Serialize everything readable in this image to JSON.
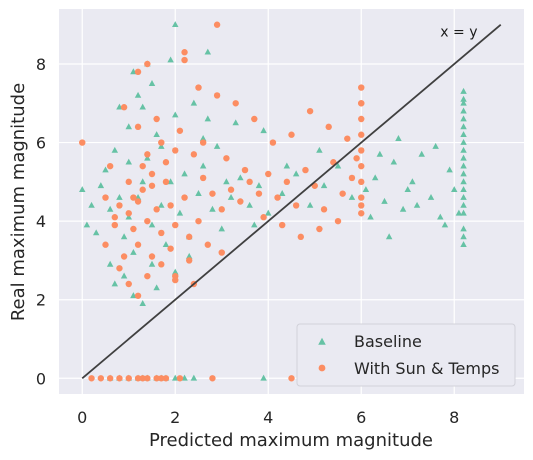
{
  "chart_data": {
    "type": "scatter",
    "title": "",
    "xlabel": "Predicted maximum magnitude",
    "ylabel": "Real maximum magnitude",
    "xlim": [
      -0.5,
      9.5
    ],
    "ylim": [
      -0.4,
      9.4
    ],
    "xticks": [
      0,
      2,
      4,
      6,
      8
    ],
    "yticks": [
      0,
      2,
      4,
      6,
      8
    ],
    "grid": true,
    "legend_position": "lower-right",
    "reference_line": {
      "label": "x = y",
      "from": [
        0,
        0
      ],
      "to": [
        9,
        9
      ],
      "color": "#404040"
    },
    "series": [
      {
        "name": "Baseline",
        "marker": "triangle",
        "color": "#66c2a5",
        "points": [
          [
            1.0,
            4.1
          ],
          [
            1.2,
            4.6
          ],
          [
            1.5,
            3.9
          ],
          [
            1.7,
            4.4
          ],
          [
            1.3,
            5.0
          ],
          [
            0.9,
            3.6
          ],
          [
            1.8,
            3.4
          ],
          [
            2.1,
            4.2
          ],
          [
            1.4,
            5.6
          ],
          [
            1.1,
            3.2
          ],
          [
            0.6,
            4.3
          ],
          [
            0.4,
            4.9
          ],
          [
            0.2,
            4.4
          ],
          [
            0.0,
            4.8
          ],
          [
            0.1,
            3.9
          ],
          [
            0.7,
            5.8
          ],
          [
            1.0,
            6.4
          ],
          [
            1.3,
            6.9
          ],
          [
            1.5,
            7.5
          ],
          [
            1.2,
            7.2
          ],
          [
            1.6,
            6.2
          ],
          [
            2.0,
            6.7
          ],
          [
            2.4,
            7.0
          ],
          [
            2.6,
            6.1
          ],
          [
            2.9,
            5.9
          ],
          [
            2.2,
            5.2
          ],
          [
            2.5,
            4.7
          ],
          [
            2.8,
            4.3
          ],
          [
            3.0,
            3.8
          ],
          [
            3.2,
            4.6
          ],
          [
            3.4,
            5.1
          ],
          [
            3.6,
            4.4
          ],
          [
            3.8,
            4.9
          ],
          [
            4.0,
            4.2
          ],
          [
            4.3,
            4.7
          ],
          [
            4.6,
            5.2
          ],
          [
            4.9,
            4.4
          ],
          [
            5.2,
            4.9
          ],
          [
            5.5,
            5.4
          ],
          [
            5.8,
            4.6
          ],
          [
            6.1,
            4.8
          ],
          [
            6.3,
            5.1
          ],
          [
            6.5,
            4.5
          ],
          [
            6.7,
            5.5
          ],
          [
            6.9,
            4.3
          ],
          [
            7.1,
            5.0
          ],
          [
            7.3,
            5.7
          ],
          [
            7.5,
            4.6
          ],
          [
            7.7,
            4.1
          ],
          [
            7.9,
            5.3
          ],
          [
            8.0,
            4.8
          ],
          [
            8.1,
            4.2
          ],
          [
            7.8,
            3.9
          ],
          [
            7.6,
            5.9
          ],
          [
            6.8,
            6.1
          ],
          [
            6.4,
            5.7
          ],
          [
            7.0,
            4.8
          ],
          [
            7.2,
            4.4
          ],
          [
            6.6,
            3.6
          ],
          [
            6.2,
            4.1
          ],
          [
            5.1,
            5.8
          ],
          [
            4.4,
            5.4
          ],
          [
            3.9,
            6.3
          ],
          [
            3.3,
            6.5
          ],
          [
            2.7,
            6.6
          ],
          [
            1.9,
            8.1
          ],
          [
            1.4,
            8.0
          ],
          [
            2.0,
            9.0
          ],
          [
            2.7,
            8.3
          ],
          [
            1.1,
            7.8
          ],
          [
            0.8,
            6.9
          ],
          [
            0.5,
            5.3
          ],
          [
            0.3,
            3.7
          ],
          [
            0.6,
            2.9
          ],
          [
            0.9,
            2.6
          ],
          [
            1.1,
            2.1
          ],
          [
            1.3,
            1.9
          ],
          [
            0.7,
            2.4
          ],
          [
            1.6,
            2.3
          ],
          [
            2.0,
            2.7
          ],
          [
            2.3,
            3.1
          ],
          [
            1.5,
            2.9
          ],
          [
            1.0,
            5.5
          ],
          [
            1.9,
            5.0
          ],
          [
            2.3,
            3.6
          ],
          [
            0.8,
            4.6
          ],
          [
            1.7,
            5.9
          ],
          [
            2.6,
            5.4
          ],
          [
            3.1,
            5.0
          ],
          [
            3.7,
            3.9
          ],
          [
            8.2,
            3.4
          ],
          [
            8.2,
            3.8
          ],
          [
            8.2,
            4.2
          ],
          [
            8.2,
            4.6
          ],
          [
            8.2,
            5.0
          ],
          [
            8.2,
            5.4
          ],
          [
            8.2,
            5.8
          ],
          [
            8.2,
            6.2
          ],
          [
            8.2,
            6.6
          ],
          [
            8.2,
            7.0
          ],
          [
            8.2,
            7.3
          ],
          [
            8.2,
            4.4
          ],
          [
            8.2,
            4.8
          ],
          [
            8.2,
            5.2
          ],
          [
            8.2,
            5.6
          ],
          [
            8.2,
            6.0
          ],
          [
            8.2,
            6.4
          ],
          [
            8.2,
            6.8
          ],
          [
            8.2,
            7.1
          ],
          [
            8.2,
            3.6
          ],
          [
            0.6,
            0.0
          ],
          [
            0.8,
            0.0
          ],
          [
            1.0,
            0.0
          ],
          [
            1.2,
            0.0
          ],
          [
            1.4,
            0.0
          ],
          [
            1.6,
            0.0
          ],
          [
            1.8,
            0.0
          ],
          [
            2.0,
            0.0
          ],
          [
            2.2,
            0.0
          ],
          [
            2.4,
            0.0
          ],
          [
            3.9,
            0.0
          ],
          [
            1.3,
            0.0
          ],
          [
            1.7,
            0.0
          ]
        ]
      },
      {
        "name": "With Sun & Temps",
        "marker": "circle",
        "color": "#fc8d62",
        "points": [
          [
            1.0,
            4.2
          ],
          [
            1.2,
            4.5
          ],
          [
            1.4,
            4.0
          ],
          [
            1.6,
            4.3
          ],
          [
            1.3,
            4.8
          ],
          [
            1.1,
            3.8
          ],
          [
            1.7,
            3.7
          ],
          [
            1.9,
            4.4
          ],
          [
            1.5,
            5.2
          ],
          [
            1.2,
            3.4
          ],
          [
            0.8,
            4.4
          ],
          [
            0.7,
            3.9
          ],
          [
            1.8,
            5.0
          ],
          [
            2.0,
            3.9
          ],
          [
            2.2,
            4.6
          ],
          [
            1.5,
            3.1
          ],
          [
            1.0,
            5.0
          ],
          [
            1.4,
            5.7
          ],
          [
            1.7,
            6.0
          ],
          [
            1.2,
            6.4
          ],
          [
            1.6,
            6.6
          ],
          [
            2.1,
            6.3
          ],
          [
            2.4,
            5.7
          ],
          [
            2.6,
            5.1
          ],
          [
            2.8,
            4.7
          ],
          [
            3.0,
            4.3
          ],
          [
            3.2,
            4.8
          ],
          [
            2.5,
            4.0
          ],
          [
            2.3,
            3.6
          ],
          [
            2.7,
            3.4
          ],
          [
            3.4,
            4.5
          ],
          [
            3.6,
            5.0
          ],
          [
            3.8,
            4.7
          ],
          [
            4.0,
            5.2
          ],
          [
            4.2,
            4.6
          ],
          [
            4.4,
            5.0
          ],
          [
            4.6,
            4.4
          ],
          [
            4.8,
            5.3
          ],
          [
            5.0,
            4.9
          ],
          [
            5.2,
            4.3
          ],
          [
            5.4,
            5.5
          ],
          [
            5.6,
            4.7
          ],
          [
            5.8,
            5.1
          ],
          [
            6.0,
            4.2
          ],
          [
            6.0,
            4.6
          ],
          [
            6.0,
            5.0
          ],
          [
            6.0,
            5.4
          ],
          [
            6.0,
            5.8
          ],
          [
            6.0,
            6.2
          ],
          [
            6.0,
            6.6
          ],
          [
            6.0,
            7.0
          ],
          [
            6.0,
            7.4
          ],
          [
            6.0,
            7.0
          ],
          [
            6.0,
            4.4
          ],
          [
            5.9,
            5.6
          ],
          [
            5.7,
            6.1
          ],
          [
            5.3,
            6.4
          ],
          [
            4.9,
            6.8
          ],
          [
            4.5,
            6.2
          ],
          [
            4.1,
            6.0
          ],
          [
            3.7,
            6.6
          ],
          [
            3.3,
            7.0
          ],
          [
            2.9,
            7.2
          ],
          [
            2.5,
            7.4
          ],
          [
            2.2,
            8.1
          ],
          [
            2.2,
            8.3
          ],
          [
            2.9,
            9.0
          ],
          [
            1.4,
            8.0
          ],
          [
            1.2,
            7.8
          ],
          [
            0.9,
            6.9
          ],
          [
            0.6,
            5.4
          ],
          [
            0.5,
            4.6
          ],
          [
            0.5,
            3.4
          ],
          [
            0.8,
            2.8
          ],
          [
            1.0,
            2.4
          ],
          [
            1.2,
            2.1
          ],
          [
            1.4,
            2.6
          ],
          [
            1.7,
            2.9
          ],
          [
            2.0,
            2.5
          ],
          [
            2.3,
            3.0
          ],
          [
            1.9,
            3.3
          ],
          [
            0.9,
            3.1
          ],
          [
            1.3,
            5.4
          ],
          [
            1.8,
            5.5
          ],
          [
            2.0,
            5.8
          ],
          [
            2.6,
            6.0
          ],
          [
            3.1,
            5.6
          ],
          [
            3.5,
            5.3
          ],
          [
            3.9,
            4.1
          ],
          [
            4.3,
            3.9
          ],
          [
            4.7,
            3.6
          ],
          [
            5.1,
            3.8
          ],
          [
            5.5,
            4.0
          ],
          [
            3.0,
            3.2
          ],
          [
            2.4,
            2.4
          ],
          [
            1.5,
            4.9
          ],
          [
            1.1,
            4.6
          ],
          [
            0.7,
            4.1
          ],
          [
            0.0,
            6.0
          ],
          [
            2.0,
            2.6
          ],
          [
            0.2,
            0.0
          ],
          [
            0.4,
            0.0
          ],
          [
            0.6,
            0.0
          ],
          [
            0.8,
            0.0
          ],
          [
            1.0,
            0.0
          ],
          [
            1.2,
            0.0
          ],
          [
            1.4,
            0.0
          ],
          [
            1.6,
            0.0
          ],
          [
            1.8,
            0.0
          ],
          [
            2.1,
            0.0
          ],
          [
            2.8,
            0.0
          ],
          [
            4.5,
            0.0
          ],
          [
            1.3,
            0.0
          ],
          [
            1.7,
            0.0
          ]
        ]
      }
    ]
  }
}
